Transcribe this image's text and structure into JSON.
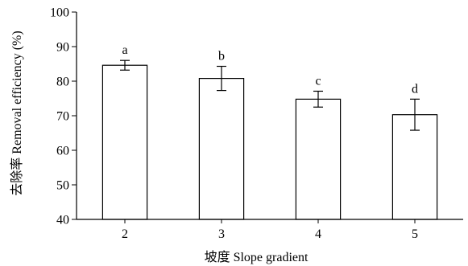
{
  "chart_data": {
    "type": "bar",
    "title": "",
    "xlabel": "坡度 Slope gradient",
    "ylabel": "去除率 Removal efficiency (%)",
    "categories": [
      "2",
      "3",
      "4",
      "5"
    ],
    "values": [
      84.6,
      80.8,
      74.8,
      70.3
    ],
    "error": [
      1.4,
      3.5,
      2.3,
      4.5
    ],
    "significance_letters": [
      "a",
      "b",
      "c",
      "d"
    ],
    "ylim": [
      40,
      100
    ],
    "yticks": [
      40,
      50,
      60,
      70,
      80,
      90,
      100
    ],
    "grid": false,
    "legend": "none",
    "bar_fill": "#ffffff",
    "bar_stroke": "#000000"
  }
}
